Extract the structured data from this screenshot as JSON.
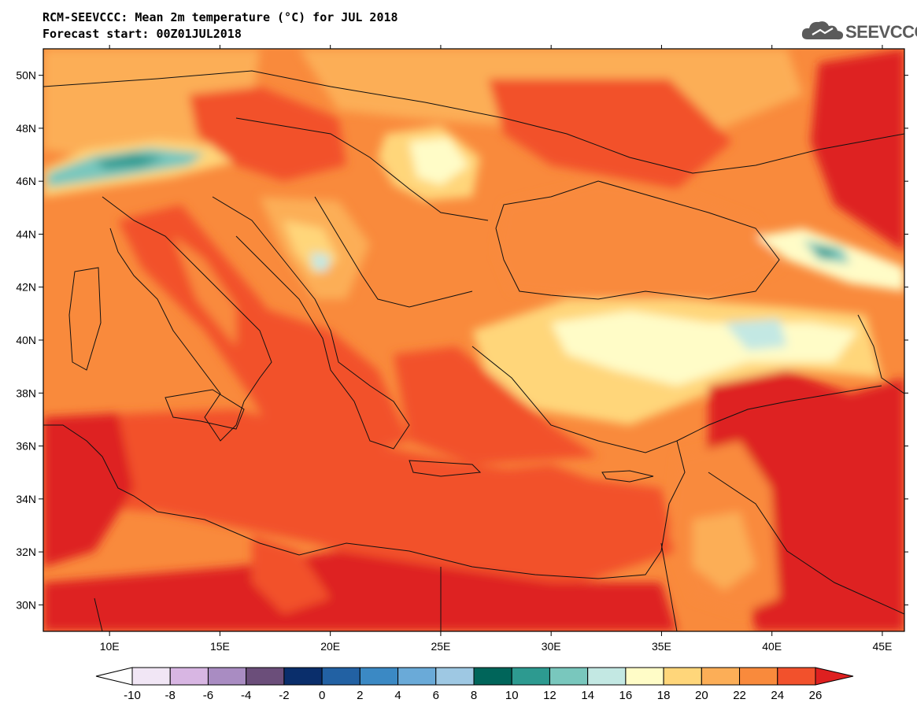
{
  "header": {
    "title_line1": "RCM-SEEVCCC: Mean 2m temperature (°C) for JUL 2018",
    "title_line2": "Forecast start: 00Z01JUL2018",
    "logo_text": "SEEVCCC"
  },
  "map": {
    "lat_labels": [
      "50N",
      "48N",
      "46N",
      "44N",
      "42N",
      "40N",
      "38N",
      "36N",
      "34N",
      "32N",
      "30N"
    ],
    "lat_values": [
      50,
      48,
      46,
      44,
      42,
      40,
      38,
      36,
      34,
      32,
      30
    ],
    "lon_labels": [
      "10E",
      "15E",
      "20E",
      "25E",
      "30E",
      "35E",
      "40E",
      "45E"
    ],
    "lon_values": [
      10,
      15,
      20,
      25,
      30,
      35,
      40,
      45
    ],
    "lat_range": [
      29,
      51
    ],
    "lon_range": [
      7,
      46
    ]
  },
  "colorbar": {
    "ticks": [
      "-10",
      "-8",
      "-6",
      "-4",
      "-2",
      "0",
      "2",
      "4",
      "6",
      "8",
      "10",
      "12",
      "14",
      "16",
      "18",
      "20",
      "22",
      "24",
      "26"
    ],
    "colors": [
      "#f1e6f5",
      "#d8b6e3",
      "#a98cc2",
      "#6b4e7a",
      "#0a2e6b",
      "#2261a3",
      "#3b89c4",
      "#6aaad8",
      "#9ec8e3",
      "#00655a",
      "#2d9a90",
      "#79c7bd",
      "#c3e8e3",
      "#fffcc7",
      "#ffd67a",
      "#fcae57",
      "#f98a3c",
      "#f2512c"
    ],
    "under_color": "#ffffff",
    "over_color": "#de2020"
  }
}
